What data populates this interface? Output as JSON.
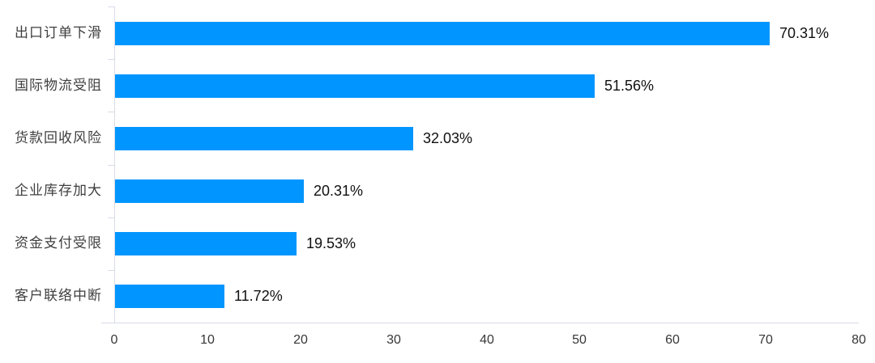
{
  "chart_data": {
    "type": "bar",
    "orientation": "horizontal",
    "title": "",
    "xlabel": "",
    "ylabel": "",
    "categories": [
      "出口订单下滑",
      "国际物流受阻",
      "货款回收风险",
      "企业库存加大",
      "资金支付受限",
      "客户联络中断"
    ],
    "values": [
      70.31,
      51.56,
      32.03,
      20.31,
      19.53,
      11.72
    ],
    "value_labels": [
      "70.31%",
      "51.56%",
      "32.03%",
      "20.31%",
      "19.53%",
      "11.72%"
    ],
    "xlim": [
      0,
      80
    ],
    "x_ticks": [
      0,
      10,
      20,
      30,
      40,
      50,
      60,
      70,
      80
    ],
    "grid": false,
    "legend": false,
    "colors": {
      "bar": "#0095ff",
      "axis_line": "#d8dce8",
      "category_label": "#3f3f3f",
      "value_label": "#101010",
      "tick_label": "#373737",
      "background": "#ffffff"
    }
  }
}
